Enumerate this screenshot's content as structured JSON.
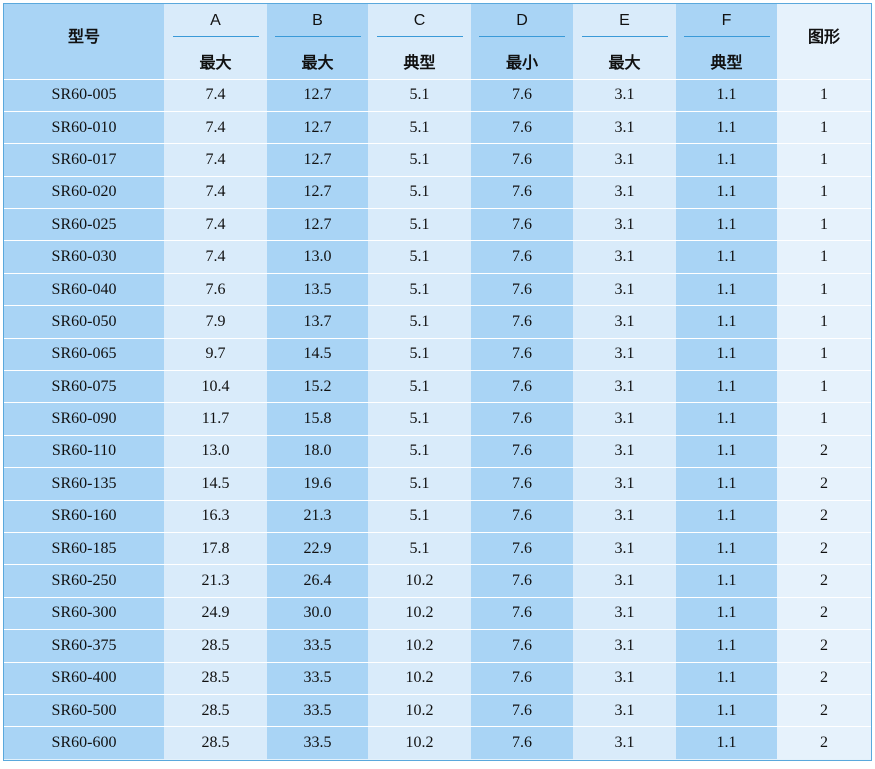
{
  "table": {
    "header_model": "型号",
    "header_shape": "图形",
    "columns": [
      {
        "letter": "A",
        "qualifier": "最大"
      },
      {
        "letter": "B",
        "qualifier": "最大"
      },
      {
        "letter": "C",
        "qualifier": "典型"
      },
      {
        "letter": "D",
        "qualifier": "最小"
      },
      {
        "letter": "E",
        "qualifier": "最大"
      },
      {
        "letter": "F",
        "qualifier": "典型"
      }
    ],
    "rows": [
      [
        "SR60-005",
        "7.4",
        "12.7",
        "5.1",
        "7.6",
        "3.1",
        "1.1",
        "1"
      ],
      [
        "SR60-010",
        "7.4",
        "12.7",
        "5.1",
        "7.6",
        "3.1",
        "1.1",
        "1"
      ],
      [
        "SR60-017",
        "7.4",
        "12.7",
        "5.1",
        "7.6",
        "3.1",
        "1.1",
        "1"
      ],
      [
        "SR60-020",
        "7.4",
        "12.7",
        "5.1",
        "7.6",
        "3.1",
        "1.1",
        "1"
      ],
      [
        "SR60-025",
        "7.4",
        "12.7",
        "5.1",
        "7.6",
        "3.1",
        "1.1",
        "1"
      ],
      [
        "SR60-030",
        "7.4",
        "13.0",
        "5.1",
        "7.6",
        "3.1",
        "1.1",
        "1"
      ],
      [
        "SR60-040",
        "7.6",
        "13.5",
        "5.1",
        "7.6",
        "3.1",
        "1.1",
        "1"
      ],
      [
        "SR60-050",
        "7.9",
        "13.7",
        "5.1",
        "7.6",
        "3.1",
        "1.1",
        "1"
      ],
      [
        "SR60-065",
        "9.7",
        "14.5",
        "5.1",
        "7.6",
        "3.1",
        "1.1",
        "1"
      ],
      [
        "SR60-075",
        "10.4",
        "15.2",
        "5.1",
        "7.6",
        "3.1",
        "1.1",
        "1"
      ],
      [
        "SR60-090",
        "11.7",
        "15.8",
        "5.1",
        "7.6",
        "3.1",
        "1.1",
        "1"
      ],
      [
        "SR60-110",
        "13.0",
        "18.0",
        "5.1",
        "7.6",
        "3.1",
        "1.1",
        "2"
      ],
      [
        "SR60-135",
        "14.5",
        "19.6",
        "5.1",
        "7.6",
        "3.1",
        "1.1",
        "2"
      ],
      [
        "SR60-160",
        "16.3",
        "21.3",
        "5.1",
        "7.6",
        "3.1",
        "1.1",
        "2"
      ],
      [
        "SR60-185",
        "17.8",
        "22.9",
        "5.1",
        "7.6",
        "3.1",
        "1.1",
        "2"
      ],
      [
        "SR60-250",
        "21.3",
        "26.4",
        "10.2",
        "7.6",
        "3.1",
        "1.1",
        "2"
      ],
      [
        "SR60-300",
        "24.9",
        "30.0",
        "10.2",
        "7.6",
        "3.1",
        "1.1",
        "2"
      ],
      [
        "SR60-375",
        "28.5",
        "33.5",
        "10.2",
        "7.6",
        "3.1",
        "1.1",
        "2"
      ],
      [
        "SR60-400",
        "28.5",
        "33.5",
        "10.2",
        "7.6",
        "3.1",
        "1.1",
        "2"
      ],
      [
        "SR60-500",
        "28.5",
        "33.5",
        "10.2",
        "7.6",
        "3.1",
        "1.1",
        "2"
      ],
      [
        "SR60-600",
        "28.5",
        "33.5",
        "10.2",
        "7.6",
        "3.1",
        "1.1",
        "2"
      ]
    ]
  },
  "colors": {
    "dark_column": "#a9d4f5",
    "light_column": "#d9ebfa",
    "pale_column": "#e6f2fc",
    "rule_line": "#3a9ad8",
    "border": "#5aa8dc"
  }
}
